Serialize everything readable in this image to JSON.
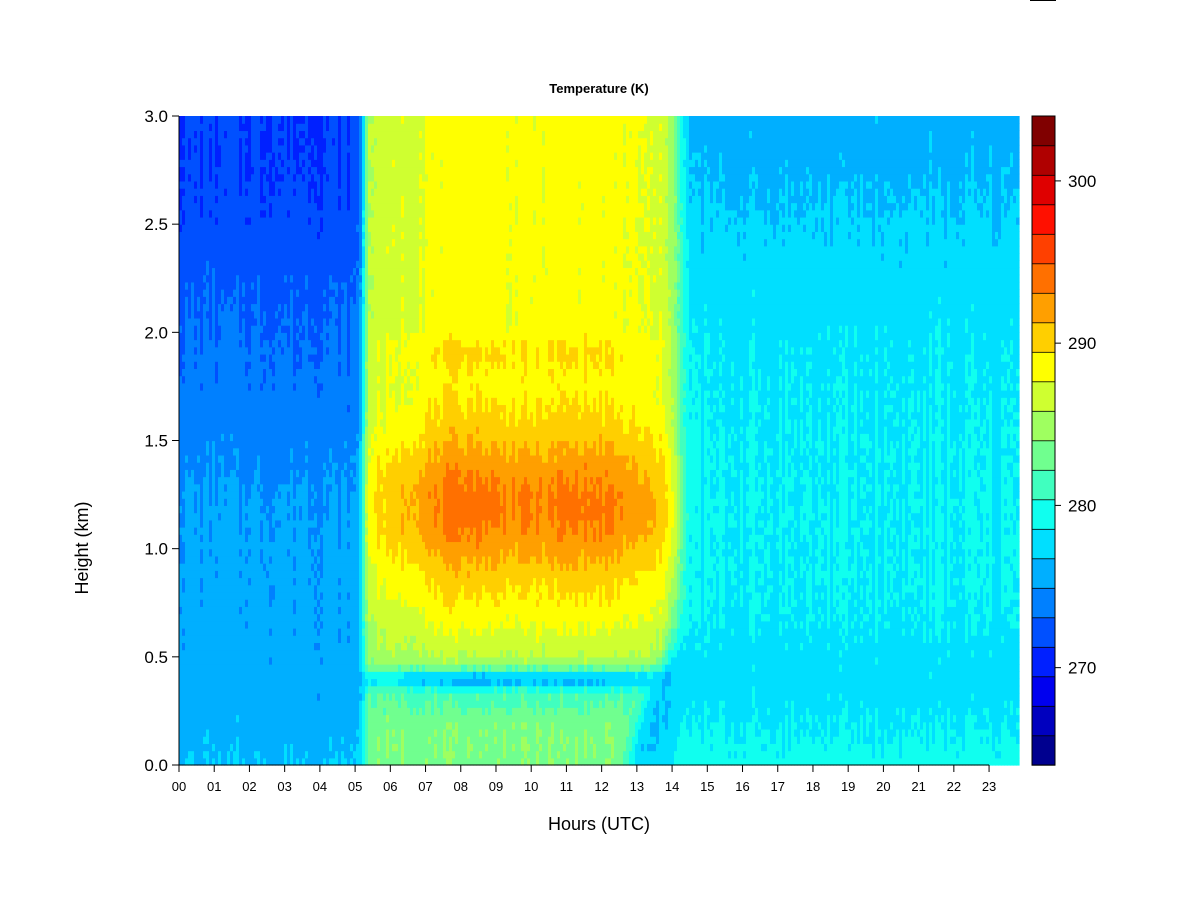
{
  "chart_data": {
    "type": "heatmap",
    "title": "Temperature (K)",
    "xlabel": "Hours (UTC)",
    "ylabel": "Height (km)",
    "xlim": [
      0,
      23.85
    ],
    "ylim": [
      0,
      3.0
    ],
    "x_ticks": [
      "00",
      "01",
      "02",
      "03",
      "04",
      "05",
      "06",
      "07",
      "08",
      "09",
      "10",
      "11",
      "12",
      "13",
      "14",
      "15",
      "16",
      "17",
      "18",
      "19",
      "20",
      "21",
      "22",
      "23"
    ],
    "y_ticks": [
      "0.0",
      "0.5",
      "1.0",
      "1.5",
      "2.0",
      "2.5",
      "3.0"
    ],
    "colorbar": {
      "min": 264,
      "max": 304,
      "step": 2,
      "tick_values": [
        270,
        280,
        290,
        300
      ],
      "tick_labels": [
        "270",
        "280",
        "290",
        "300"
      ],
      "colors": [
        "#00008F",
        "#0000BF",
        "#0000EF",
        "#0020FF",
        "#0050FF",
        "#0080FF",
        "#00AFFF",
        "#00DFFF",
        "#10FFEF",
        "#40FFBF",
        "#70FF8F",
        "#9FFF60",
        "#CFFF30",
        "#FFFF00",
        "#FFCF00",
        "#FF9F00",
        "#FF7000",
        "#FF4000",
        "#FF1000",
        "#DF0000",
        "#AF0000",
        "#800000"
      ]
    },
    "grid": false,
    "field_description": "Approximate field: cold ~269-275 K aloft during 00-05 UTC and 14-24 UTC, ~277-281 K near surface at night; warm layer 05.3-13.8 UTC reaching ~296-300 K near 1.2 km with 290-293 K above 2 km, a cool band near 0.4 km and ~286 K near the surface."
  }
}
